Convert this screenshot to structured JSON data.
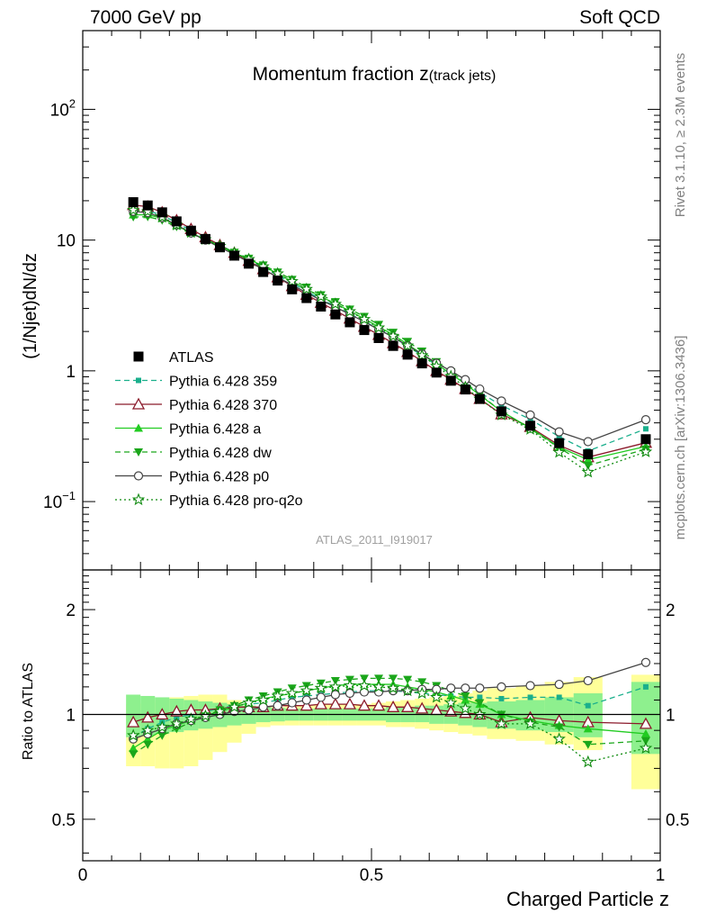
{
  "header": {
    "left": "7000 GeV pp",
    "right": "Soft QCD"
  },
  "side_text": {
    "top": "Rivet 3.1.10, ≥ 2.3M events",
    "bottom": "mcplots.cern.ch [arXiv:1306.3436]"
  },
  "chart_data": [
    {
      "type": "scatter",
      "panel": "main",
      "title_main": "Momentum fraction z",
      "title_sub": "(track jets)",
      "xlabel": "",
      "ylabel": "(1/Njet)dN/dz",
      "y_scale": "log",
      "xlim": [
        0,
        1
      ],
      "ylim": [
        0.03,
        400
      ],
      "y_tick_labels": [
        "10",
        "1"
      ],
      "y_tick_labels_exp": [
        {
          "base": "10",
          "exp": "2"
        },
        {
          "base": "10",
          "exp": "−1"
        }
      ],
      "watermark": "ATLAS_2011_I919017",
      "legend_position": "left-bottom",
      "legend": [
        {
          "key": "atlas",
          "label": "ATLAS"
        },
        {
          "key": "p359",
          "label": "Pythia 6.428 359"
        },
        {
          "key": "p370",
          "label": "Pythia 6.428 370"
        },
        {
          "key": "pa",
          "label": "Pythia 6.428 a"
        },
        {
          "key": "pdw",
          "label": "Pythia 6.428 dw"
        },
        {
          "key": "pp0",
          "label": "Pythia 6.428 p0"
        },
        {
          "key": "pq2o",
          "label": "Pythia 6.428 pro-q2o"
        }
      ],
      "bins": [
        [
          0.075,
          0.1
        ],
        [
          0.1,
          0.125
        ],
        [
          0.125,
          0.15
        ],
        [
          0.15,
          0.175
        ],
        [
          0.175,
          0.2
        ],
        [
          0.2,
          0.225
        ],
        [
          0.225,
          0.25
        ],
        [
          0.25,
          0.275
        ],
        [
          0.275,
          0.3
        ],
        [
          0.3,
          0.325
        ],
        [
          0.325,
          0.35
        ],
        [
          0.35,
          0.375
        ],
        [
          0.375,
          0.4
        ],
        [
          0.4,
          0.425
        ],
        [
          0.425,
          0.45
        ],
        [
          0.45,
          0.475
        ],
        [
          0.475,
          0.5
        ],
        [
          0.5,
          0.525
        ],
        [
          0.525,
          0.55
        ],
        [
          0.55,
          0.575
        ],
        [
          0.575,
          0.6
        ],
        [
          0.6,
          0.625
        ],
        [
          0.625,
          0.65
        ],
        [
          0.65,
          0.675
        ],
        [
          0.675,
          0.7
        ],
        [
          0.7,
          0.75
        ],
        [
          0.75,
          0.8
        ],
        [
          0.8,
          0.85
        ],
        [
          0.85,
          0.9
        ],
        [
          0.95,
          1.0
        ]
      ],
      "x": [
        0.0875,
        0.1125,
        0.1375,
        0.1625,
        0.1875,
        0.2125,
        0.2375,
        0.2625,
        0.2875,
        0.3125,
        0.3375,
        0.3625,
        0.3875,
        0.4125,
        0.4375,
        0.4625,
        0.4875,
        0.5125,
        0.5375,
        0.5625,
        0.5875,
        0.6125,
        0.6375,
        0.6625,
        0.6875,
        0.725,
        0.775,
        0.825,
        0.875,
        0.975
      ],
      "atlas": [
        19.5,
        18.4,
        16.3,
        13.9,
        11.8,
        10.2,
        8.8,
        7.6,
        6.6,
        5.7,
        4.9,
        4.2,
        3.6,
        3.1,
        2.7,
        2.35,
        2.05,
        1.78,
        1.55,
        1.33,
        1.14,
        0.97,
        0.84,
        0.72,
        0.61,
        0.49,
        0.38,
        0.28,
        0.23,
        0.3
      ],
      "series": [
        {
          "key": "p359",
          "name": "Pythia 6.428 359",
          "color": "#1aaf8c",
          "dash": "6,4",
          "marker": "square-small",
          "ratio": [
            0.86,
            0.91,
            0.95,
            0.98,
            1.0,
            1.02,
            1.04,
            1.06,
            1.07,
            1.08,
            1.1,
            1.12,
            1.13,
            1.14,
            1.15,
            1.16,
            1.17,
            1.17,
            1.17,
            1.16,
            1.15,
            1.14,
            1.13,
            1.12,
            1.12,
            1.11,
            1.12,
            1.12,
            1.06,
            1.2
          ]
        },
        {
          "key": "p370",
          "name": "Pythia 6.428 370",
          "color": "#8b1a2b",
          "dash": "",
          "marker": "triangle-open",
          "ratio": [
            0.95,
            0.98,
            1.0,
            1.02,
            1.03,
            1.03,
            1.04,
            1.05,
            1.05,
            1.05,
            1.06,
            1.06,
            1.06,
            1.07,
            1.07,
            1.07,
            1.06,
            1.06,
            1.05,
            1.05,
            1.04,
            1.03,
            1.02,
            1.01,
            1.0,
            0.95,
            0.98,
            0.96,
            0.95,
            0.94
          ]
        },
        {
          "key": "pa",
          "name": "Pythia 6.428 a",
          "color": "#22cc22",
          "dash": "",
          "marker": "triangle-filled",
          "ratio": [
            0.8,
            0.85,
            0.9,
            0.93,
            0.96,
            0.99,
            1.02,
            1.05,
            1.08,
            1.11,
            1.13,
            1.15,
            1.17,
            1.19,
            1.21,
            1.22,
            1.22,
            1.22,
            1.22,
            1.2,
            1.18,
            1.16,
            1.13,
            1.1,
            1.07,
            1.0,
            0.96,
            0.93,
            0.91,
            0.88
          ]
        },
        {
          "key": "pdw",
          "name": "Pythia 6.428 dw",
          "color": "#1aa61a",
          "dash": "6,4",
          "marker": "triangle-down",
          "ratio": [
            0.77,
            0.82,
            0.87,
            0.91,
            0.95,
            0.99,
            1.03,
            1.06,
            1.1,
            1.13,
            1.16,
            1.19,
            1.21,
            1.23,
            1.25,
            1.26,
            1.27,
            1.27,
            1.27,
            1.26,
            1.24,
            1.21,
            1.17,
            1.13,
            1.08,
            1.0,
            0.95,
            0.92,
            0.82,
            0.84
          ]
        },
        {
          "key": "pp0",
          "name": "Pythia 6.428 p0",
          "color": "#444444",
          "dash": "",
          "marker": "circle-open",
          "ratio": [
            0.85,
            0.88,
            0.91,
            0.94,
            0.96,
            0.98,
            1.0,
            1.02,
            1.03,
            1.05,
            1.06,
            1.08,
            1.1,
            1.12,
            1.14,
            1.15,
            1.16,
            1.16,
            1.17,
            1.17,
            1.18,
            1.18,
            1.19,
            1.19,
            1.19,
            1.2,
            1.21,
            1.22,
            1.25,
            1.41
          ]
        },
        {
          "key": "pq2o",
          "name": "Pythia 6.428 pro-q2o",
          "color": "#0f8a0f",
          "dash": "2,3",
          "marker": "star-open",
          "ratio": [
            0.87,
            0.9,
            0.92,
            0.94,
            0.97,
            0.99,
            1.02,
            1.05,
            1.08,
            1.1,
            1.13,
            1.15,
            1.17,
            1.19,
            1.2,
            1.21,
            1.21,
            1.2,
            1.19,
            1.17,
            1.15,
            1.12,
            1.08,
            1.04,
            1.0,
            0.94,
            0.94,
            0.85,
            0.73,
            0.8
          ]
        }
      ]
    },
    {
      "type": "scatter",
      "panel": "ratio",
      "xlabel": "Charged Particle z",
      "ylabel": "Ratio to ATLAS",
      "y_scale": "log",
      "xlim": [
        0,
        1
      ],
      "ylim": [
        0.38,
        2.6
      ],
      "x_tick_labels": [
        "0",
        "0.5",
        "1"
      ],
      "y_tick_labels": [
        "2",
        "1",
        "0.5"
      ],
      "band_inner": [
        [
          0.86,
          1.14
        ],
        [
          0.87,
          1.13
        ],
        [
          0.88,
          1.12
        ],
        [
          0.89,
          1.11
        ],
        [
          0.9,
          1.1
        ],
        [
          0.91,
          1.09
        ],
        [
          0.92,
          1.08
        ],
        [
          0.93,
          1.07
        ],
        [
          0.94,
          1.06
        ],
        [
          0.95,
          1.05
        ],
        [
          0.955,
          1.045
        ],
        [
          0.96,
          1.04
        ],
        [
          0.96,
          1.04
        ],
        [
          0.96,
          1.04
        ],
        [
          0.96,
          1.04
        ],
        [
          0.96,
          1.04
        ],
        [
          0.96,
          1.04
        ],
        [
          0.96,
          1.04
        ],
        [
          0.95,
          1.05
        ],
        [
          0.95,
          1.05
        ],
        [
          0.95,
          1.06
        ],
        [
          0.94,
          1.06
        ],
        [
          0.94,
          1.07
        ],
        [
          0.93,
          1.08
        ],
        [
          0.92,
          1.08
        ],
        [
          0.91,
          1.09
        ],
        [
          0.9,
          1.1
        ],
        [
          0.89,
          1.12
        ],
        [
          0.86,
          1.15
        ],
        [
          0.77,
          1.24
        ]
      ],
      "band_outer": [
        [
          0.71,
          1.07
        ],
        [
          0.71,
          1.08
        ],
        [
          0.7,
          1.1
        ],
        [
          0.7,
          1.12
        ],
        [
          0.71,
          1.13
        ],
        [
          0.74,
          1.14
        ],
        [
          0.78,
          1.14
        ],
        [
          0.83,
          1.1
        ],
        [
          0.88,
          1.06
        ],
        [
          0.92,
          1.05
        ],
        [
          0.93,
          1.05
        ],
        [
          0.93,
          1.06
        ],
        [
          0.93,
          1.06
        ],
        [
          0.93,
          1.07
        ],
        [
          0.93,
          1.07
        ],
        [
          0.93,
          1.07
        ],
        [
          0.93,
          1.07
        ],
        [
          0.93,
          1.08
        ],
        [
          0.92,
          1.09
        ],
        [
          0.92,
          1.1
        ],
        [
          0.91,
          1.11
        ],
        [
          0.9,
          1.12
        ],
        [
          0.89,
          1.13
        ],
        [
          0.88,
          1.15
        ],
        [
          0.87,
          1.17
        ],
        [
          0.85,
          1.19
        ],
        [
          0.84,
          1.21
        ],
        [
          0.82,
          1.24
        ],
        [
          0.79,
          1.28
        ],
        [
          0.61,
          1.3
        ]
      ]
    }
  ]
}
